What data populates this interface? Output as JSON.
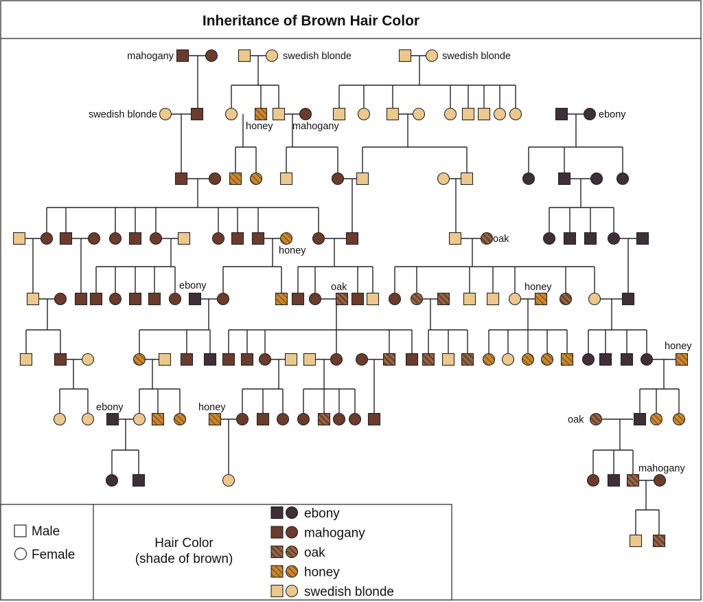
{
  "title": "Inheritance of Brown Hair Color",
  "legend": {
    "male_label": "Male",
    "female_label": "Female",
    "hair_color_title": "Hair Color",
    "hair_color_subtitle": "(shade of brown)",
    "shades": [
      {
        "key": "ebony",
        "label": "ebony"
      },
      {
        "key": "mahogany",
        "label": "mahogany"
      },
      {
        "key": "oak",
        "label": "oak"
      },
      {
        "key": "honey",
        "label": "honey"
      },
      {
        "key": "blonde",
        "label": "swedish blonde"
      }
    ]
  },
  "colors": {
    "ebony": "#3e3036",
    "mahogany": "#6b3b2c",
    "oak_a": "#6e4430",
    "oak_b": "#9a6a48",
    "honey_a": "#c88a32",
    "honey_b": "#9a5c1c",
    "blonde": "#ecc88e",
    "line": "#222222"
  },
  "labels": [
    {
      "text": "mahogany"
    },
    {
      "text": "swedish blonde"
    },
    {
      "text": "swedish blonde"
    },
    {
      "text": "swedish blonde"
    },
    {
      "text": "honey"
    },
    {
      "text": "mahogany"
    },
    {
      "text": "ebony"
    },
    {
      "text": "oak"
    },
    {
      "text": "honey"
    },
    {
      "text": "ebony"
    },
    {
      "text": "oak"
    },
    {
      "text": "honey"
    },
    {
      "text": "honey"
    },
    {
      "text": "ebony"
    },
    {
      "text": "honey"
    },
    {
      "text": "oak"
    },
    {
      "text": "mahogany"
    }
  ]
}
